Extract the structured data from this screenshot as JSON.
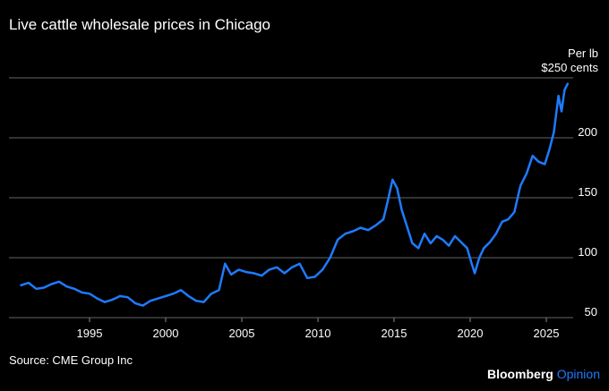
{
  "header": {
    "title": "Live cattle wholesale prices in Chicago",
    "unit_line1": "Per lb",
    "unit_line2": "$250 cents"
  },
  "footer": {
    "source": "Source: CME Group Inc",
    "brand_primary": "Bloomberg",
    "brand_secondary": "Opinion"
  },
  "colors": {
    "background": "#000000",
    "line": "#1e7bff",
    "grid": "#666666",
    "brand_accent": "#1e7bff"
  },
  "chart_data": {
    "type": "line",
    "title": "Live cattle wholesale prices in Chicago",
    "ylabel": "Per lb (cents)",
    "ylim": [
      50,
      250
    ],
    "xlim": [
      1990.5,
      2026.7
    ],
    "y_ticks": [
      50,
      100,
      150,
      200
    ],
    "y_tick_labels": [
      "50",
      "100",
      "150",
      "200"
    ],
    "top_tick_label": "$250 cents",
    "x_ticks": [
      1995,
      2000,
      2005,
      2010,
      2015,
      2020,
      2025
    ],
    "x_tick_labels": [
      "1995",
      "2000",
      "2005",
      "2010",
      "2015",
      "2020",
      "2025"
    ],
    "grid": true,
    "axis_side": "right",
    "series": [
      {
        "x": [
          1990.5,
          1991,
          1991.5,
          1992,
          1992.5,
          1993,
          1993.5,
          1994,
          1994.5,
          1995,
          1995.5,
          1996,
          1996.5,
          1997,
          1997.5,
          1998,
          1998.5,
          1999,
          1999.5,
          2000,
          2000.5,
          2001,
          2001.5,
          2002,
          2002.5,
          2003,
          2003.5,
          2003.9,
          2004.3,
          2004.8,
          2005.3,
          2005.8,
          2006.3,
          2006.8,
          2007.3,
          2007.8,
          2008.3,
          2008.8,
          2009.3,
          2009.8,
          2010.3,
          2010.8,
          2011.3,
          2011.8,
          2012.3,
          2012.8,
          2013.3,
          2013.8,
          2014.3,
          2014.6,
          2014.9,
          2015.2,
          2015.5,
          2015.8,
          2016.2,
          2016.6,
          2017,
          2017.4,
          2017.8,
          2018.2,
          2018.6,
          2019,
          2019.4,
          2019.8,
          2020.1,
          2020.3,
          2020.6,
          2020.9,
          2021.3,
          2021.7,
          2022.1,
          2022.5,
          2022.9,
          2023.3,
          2023.7,
          2024.1,
          2024.5,
          2024.9,
          2025.2,
          2025.5,
          2025.8,
          2026,
          2026.2,
          2026.4
        ],
        "values": [
          77,
          79,
          74,
          75,
          78,
          80,
          76,
          74,
          71,
          70,
          66,
          63,
          65,
          68,
          67,
          62,
          60,
          64,
          66,
          68,
          70,
          73,
          68,
          64,
          63,
          70,
          73,
          95,
          86,
          90,
          88,
          87,
          85,
          90,
          92,
          87,
          92,
          95,
          83,
          84,
          90,
          100,
          115,
          120,
          122,
          125,
          123,
          127,
          132,
          148,
          165,
          158,
          140,
          128,
          112,
          108,
          120,
          112,
          118,
          115,
          110,
          118,
          113,
          108,
          95,
          87,
          100,
          108,
          113,
          120,
          130,
          132,
          138,
          160,
          170,
          185,
          180,
          178,
          190,
          205,
          235,
          222,
          240,
          245
        ]
      }
    ]
  }
}
